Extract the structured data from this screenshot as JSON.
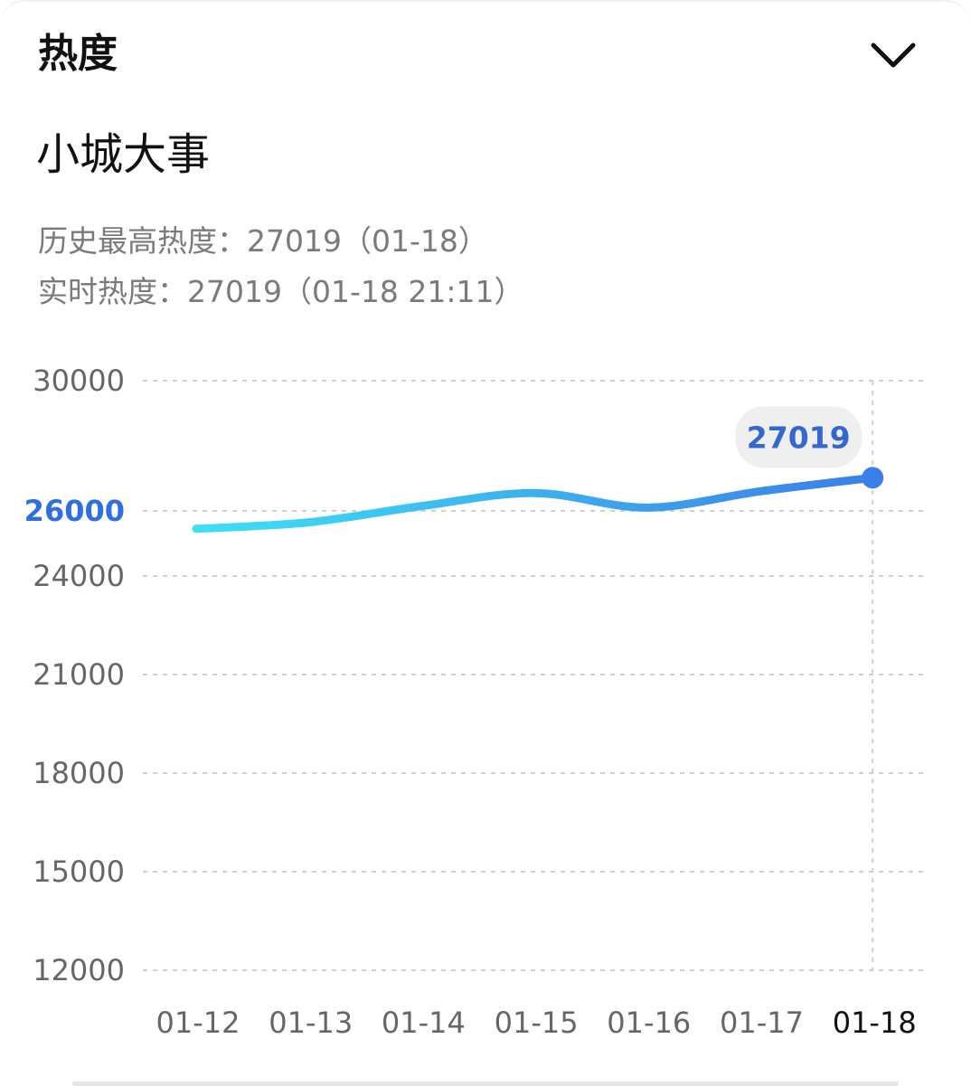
{
  "header": {
    "title": "热度",
    "collapse_icon": "chevron-down-icon"
  },
  "topic": {
    "name": "小城大事"
  },
  "stats": {
    "peak_text": "历史最高热度：27019（01-18）",
    "realtime_text": "实时热度：27019（01-18 21:11）"
  },
  "chart_data": {
    "type": "line",
    "title": "",
    "xlabel": "",
    "ylabel": "",
    "categories": [
      "01-12",
      "01-13",
      "01-14",
      "01-15",
      "01-16",
      "01-17",
      "01-18"
    ],
    "series": [
      {
        "values": [
          25450,
          25650,
          26150,
          26550,
          26100,
          26600,
          27019
        ]
      }
    ],
    "y_ticks": [
      "30000",
      "26000",
      "24000",
      "21000",
      "18000",
      "15000",
      "12000"
    ],
    "y_tick_values": [
      30000,
      26000,
      24000,
      21000,
      18000,
      15000,
      12000
    ],
    "highlight_y_tick": "26000",
    "ylim": [
      12000,
      30000
    ],
    "active_category": "01-18",
    "tooltip_value": "27019",
    "grid": true,
    "legend": "none",
    "colors": {
      "line_start": "#3ee0f5",
      "line_end": "#3a7fe8",
      "point": "#3a7fe8",
      "highlight_tick": "#2f6fe0",
      "tooltip_bg": "#efefef",
      "tooltip_text": "#3567d1",
      "grid": "#cfcfcf"
    }
  }
}
